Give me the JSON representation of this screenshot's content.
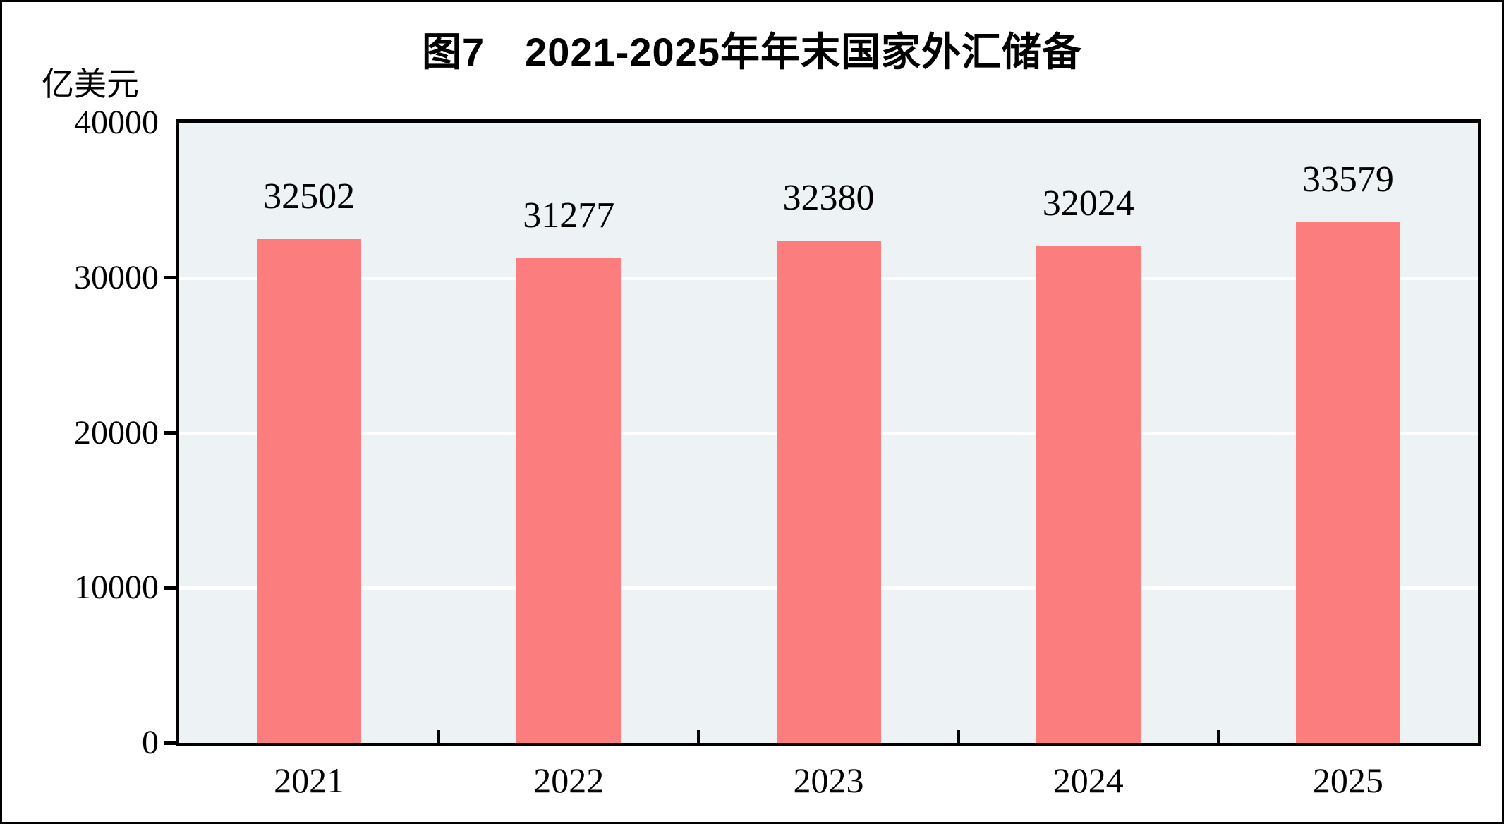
{
  "chart_data": {
    "type": "bar",
    "title": "图7　2021-2025年年末国家外汇储备",
    "ylabel": "亿美元",
    "xlabel": "",
    "categories": [
      "2021",
      "2022",
      "2023",
      "2024",
      "2025"
    ],
    "values": [
      32502,
      31277,
      32380,
      32024,
      33579
    ],
    "data_labels": [
      "32502",
      "31277",
      "32380",
      "32024",
      "33579"
    ],
    "ylim": [
      0,
      40000
    ],
    "yticks": [
      0,
      10000,
      20000,
      30000,
      40000
    ],
    "ytick_labels": [
      "0",
      "10000",
      "20000",
      "30000",
      "40000"
    ],
    "grid": "horizontal",
    "legend": "none",
    "colors": {
      "bar": "#FC7D7D",
      "plot_background": "#EDF2F5",
      "gridline": "#FFFFFF",
      "axis": "#000000",
      "text": "#000000",
      "page_background": "#FFFFFF"
    }
  }
}
